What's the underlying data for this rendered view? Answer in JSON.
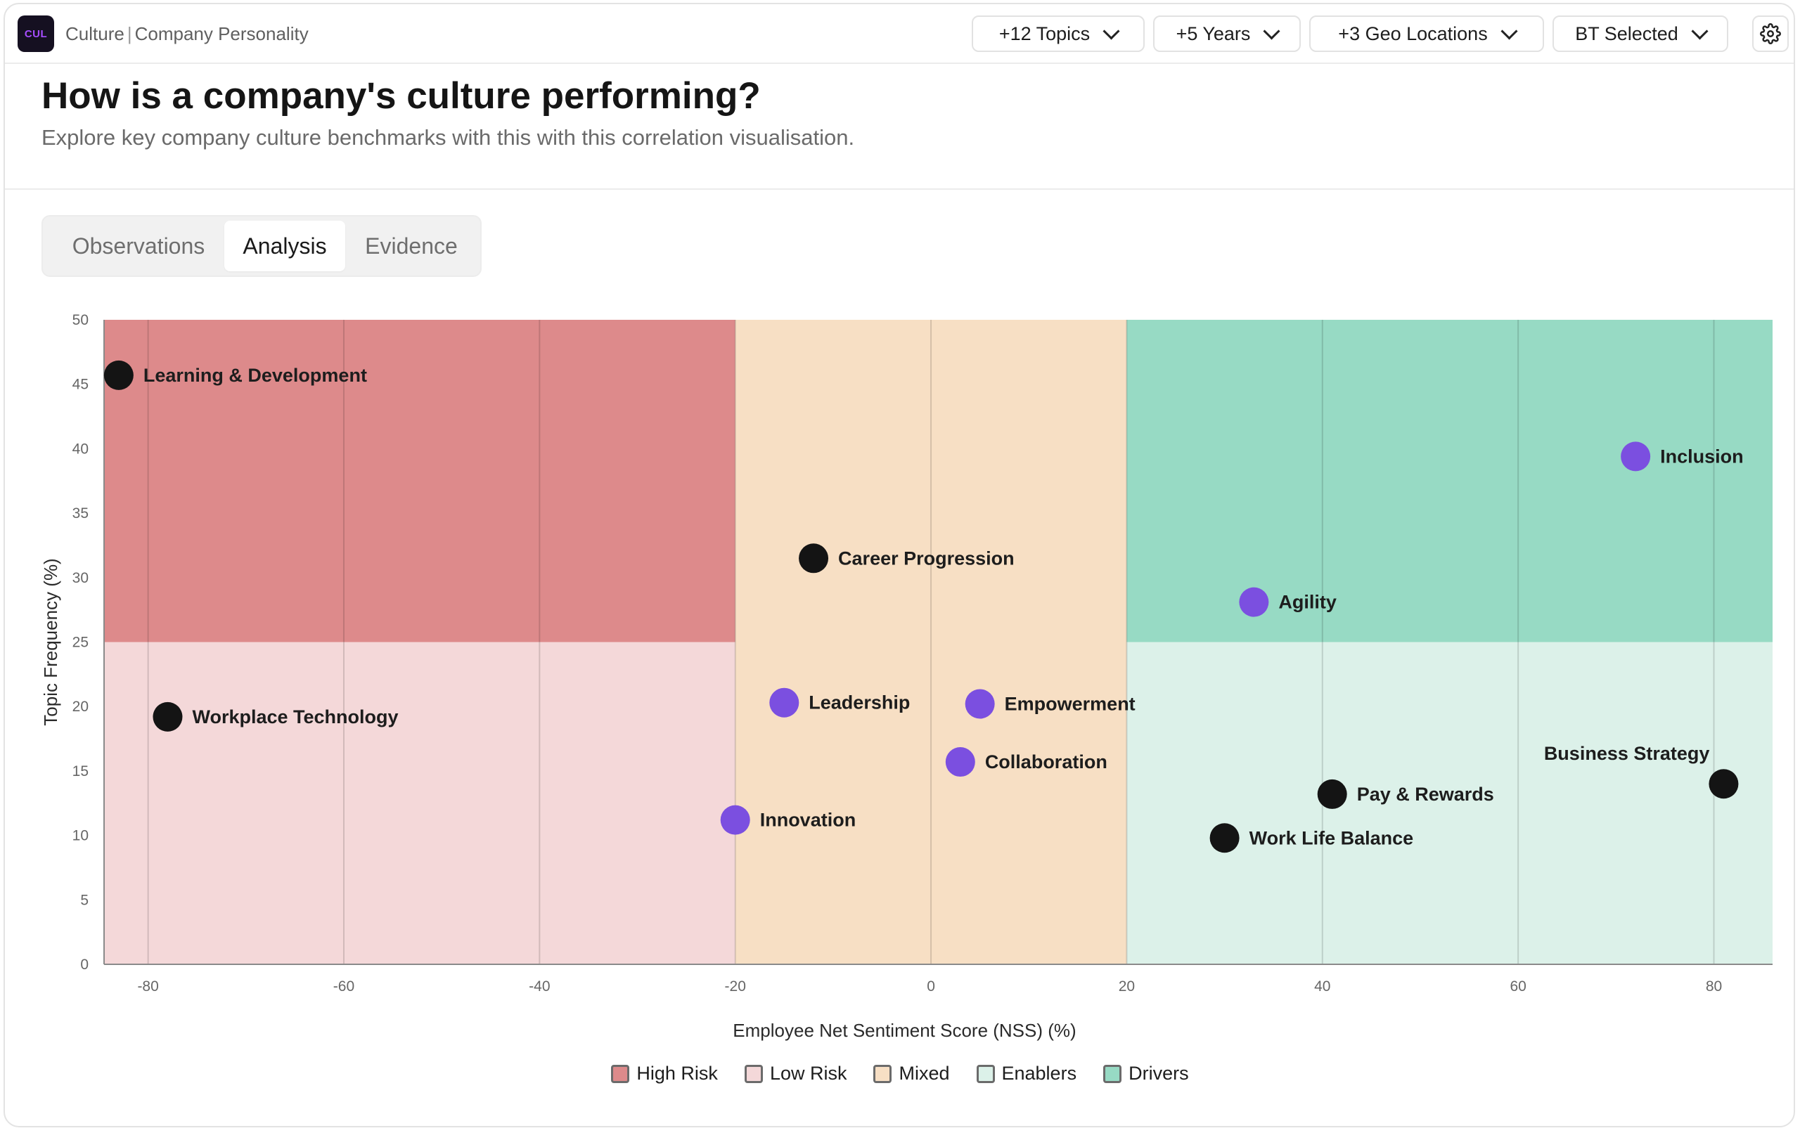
{
  "app": {
    "logo_text": "CUL",
    "name": "Culture",
    "section": "Company Personality"
  },
  "filters": [
    {
      "label": "+12 Topics"
    },
    {
      "label": "+5 Years"
    },
    {
      "label": "+3 Geo Locations"
    },
    {
      "label": "BT Selected"
    }
  ],
  "header": {
    "title": "How is a company's culture performing?",
    "subtitle": "Explore key company culture benchmarks with this with this correlation visualisation."
  },
  "tabs": [
    {
      "label": "Observations",
      "active": false
    },
    {
      "label": "Analysis",
      "active": true
    },
    {
      "label": "Evidence",
      "active": false
    }
  ],
  "chart_data": {
    "type": "scatter",
    "xlabel": "Employee Net Sentiment Score (NSS) (%)",
    "ylabel": "Topic Frequency (%)",
    "xlim": [
      -84.5,
      86
    ],
    "ylim": [
      0,
      50
    ],
    "x_ticks": [
      -80,
      -60,
      -40,
      -20,
      0,
      20,
      40,
      60,
      80
    ],
    "y_ticks": [
      0,
      5,
      10,
      15,
      20,
      25,
      30,
      35,
      40,
      45,
      50
    ],
    "regions": [
      {
        "name": "High Risk",
        "x": [
          -84.5,
          -20
        ],
        "y": [
          25,
          50
        ],
        "color": "#dd8a8b"
      },
      {
        "name": "Low Risk",
        "x": [
          -84.5,
          -20
        ],
        "y": [
          0,
          25
        ],
        "color": "#f4d8d9"
      },
      {
        "name": "Mixed",
        "x": [
          -20,
          20
        ],
        "y": [
          0,
          50
        ],
        "color": "#f7dfc4"
      },
      {
        "name": "Drivers",
        "x": [
          20,
          86
        ],
        "y": [
          25,
          50
        ],
        "color": "#97dac4"
      },
      {
        "name": "Enablers",
        "x": [
          20,
          86
        ],
        "y": [
          0,
          25
        ],
        "color": "#dcf1e9"
      }
    ],
    "points": [
      {
        "label": "Learning & Development",
        "x": -83,
        "y": 45.7,
        "category": "black",
        "label_side": "right"
      },
      {
        "label": "Workplace Technology",
        "x": -78,
        "y": 19.2,
        "category": "black",
        "label_side": "right"
      },
      {
        "label": "Career Progression",
        "x": -12,
        "y": 31.5,
        "category": "black",
        "label_side": "right"
      },
      {
        "label": "Leadership",
        "x": -15,
        "y": 20.3,
        "category": "purple",
        "label_side": "right"
      },
      {
        "label": "Empowerment",
        "x": 5,
        "y": 20.2,
        "category": "purple",
        "label_side": "right"
      },
      {
        "label": "Collaboration",
        "x": 3,
        "y": 15.7,
        "category": "purple",
        "label_side": "right"
      },
      {
        "label": "Innovation",
        "x": -20,
        "y": 11.2,
        "category": "purple",
        "label_side": "right"
      },
      {
        "label": "Inclusion",
        "x": 72,
        "y": 39.4,
        "category": "purple",
        "label_side": "right"
      },
      {
        "label": "Agility",
        "x": 33,
        "y": 28.1,
        "category": "purple",
        "label_side": "right"
      },
      {
        "label": "Pay & Rewards",
        "x": 41,
        "y": 13.2,
        "category": "black",
        "label_side": "right"
      },
      {
        "label": "Work Life Balance",
        "x": 30,
        "y": 9.8,
        "category": "black",
        "label_side": "right"
      },
      {
        "label": "Business Strategy",
        "x": 81,
        "y": 14.0,
        "category": "black",
        "label_side": "above-left"
      }
    ],
    "point_colors": {
      "black": "#141414",
      "purple": "#7b4fe0"
    },
    "grid": true,
    "legend": [
      {
        "name": "High Risk",
        "color": "#dd8a8b"
      },
      {
        "name": "Low Risk",
        "color": "#f4d8d9"
      },
      {
        "name": "Mixed",
        "color": "#f7dfc4"
      },
      {
        "name": "Enablers",
        "color": "#dcf1e9"
      },
      {
        "name": "Drivers",
        "color": "#97dac4"
      }
    ],
    "legend_position": "bottom-center"
  }
}
